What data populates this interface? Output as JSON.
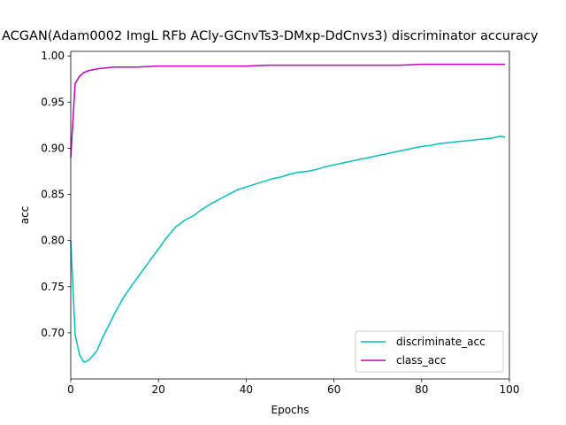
{
  "chart_data": {
    "type": "line",
    "title": "ACGAN(Adam0002 ImgL RFb ACly-GCnvTs3-DMxp-DdCnvs3) discriminator accuracy",
    "xlabel": "Epochs",
    "ylabel": "acc",
    "xlim": [
      0,
      100
    ],
    "ylim": [
      0.65,
      1.005
    ],
    "xticks": [
      0,
      20,
      40,
      60,
      80,
      100
    ],
    "yticks": [
      0.7,
      0.75,
      0.8,
      0.85,
      0.9,
      0.95,
      1.0
    ],
    "xtick_labels": [
      "0",
      "20",
      "40",
      "60",
      "80",
      "100"
    ],
    "ytick_labels": [
      "0.70",
      "0.75",
      "0.80",
      "0.85",
      "0.90",
      "0.95",
      "1.00"
    ],
    "grid": false,
    "legend_position": "bottom-right",
    "series": [
      {
        "name": "discriminate_acc",
        "color": "#00bfbf",
        "x": [
          0,
          1,
          2,
          3,
          4,
          5,
          6,
          7,
          8,
          9,
          10,
          12,
          14,
          16,
          18,
          20,
          22,
          24,
          26,
          28,
          30,
          32,
          34,
          36,
          38,
          40,
          42,
          44,
          46,
          48,
          50,
          52,
          54,
          56,
          58,
          60,
          62,
          64,
          66,
          68,
          70,
          72,
          74,
          76,
          78,
          80,
          82,
          84,
          86,
          88,
          90,
          92,
          94,
          96,
          98,
          99
        ],
        "y": [
          0.8,
          0.698,
          0.676,
          0.668,
          0.67,
          0.675,
          0.681,
          0.692,
          0.702,
          0.711,
          0.721,
          0.738,
          0.752,
          0.765,
          0.778,
          0.791,
          0.804,
          0.815,
          0.822,
          0.827,
          0.834,
          0.84,
          0.845,
          0.85,
          0.855,
          0.858,
          0.861,
          0.864,
          0.867,
          0.869,
          0.872,
          0.874,
          0.875,
          0.877,
          0.88,
          0.882,
          0.884,
          0.886,
          0.888,
          0.89,
          0.892,
          0.894,
          0.896,
          0.898,
          0.9,
          0.902,
          0.903,
          0.905,
          0.906,
          0.907,
          0.908,
          0.909,
          0.91,
          0.911,
          0.913,
          0.912
        ]
      },
      {
        "name": "class_acc",
        "color": "#bf00bf",
        "x": [
          0,
          1,
          2,
          3,
          4,
          5,
          6,
          8,
          10,
          15,
          20,
          25,
          30,
          35,
          40,
          45,
          50,
          55,
          60,
          65,
          70,
          75,
          80,
          85,
          90,
          95,
          99
        ],
        "y": [
          0.89,
          0.97,
          0.978,
          0.982,
          0.984,
          0.985,
          0.986,
          0.987,
          0.988,
          0.988,
          0.989,
          0.989,
          0.989,
          0.989,
          0.989,
          0.99,
          0.99,
          0.99,
          0.99,
          0.99,
          0.99,
          0.99,
          0.991,
          0.991,
          0.991,
          0.991,
          0.991
        ]
      }
    ]
  }
}
